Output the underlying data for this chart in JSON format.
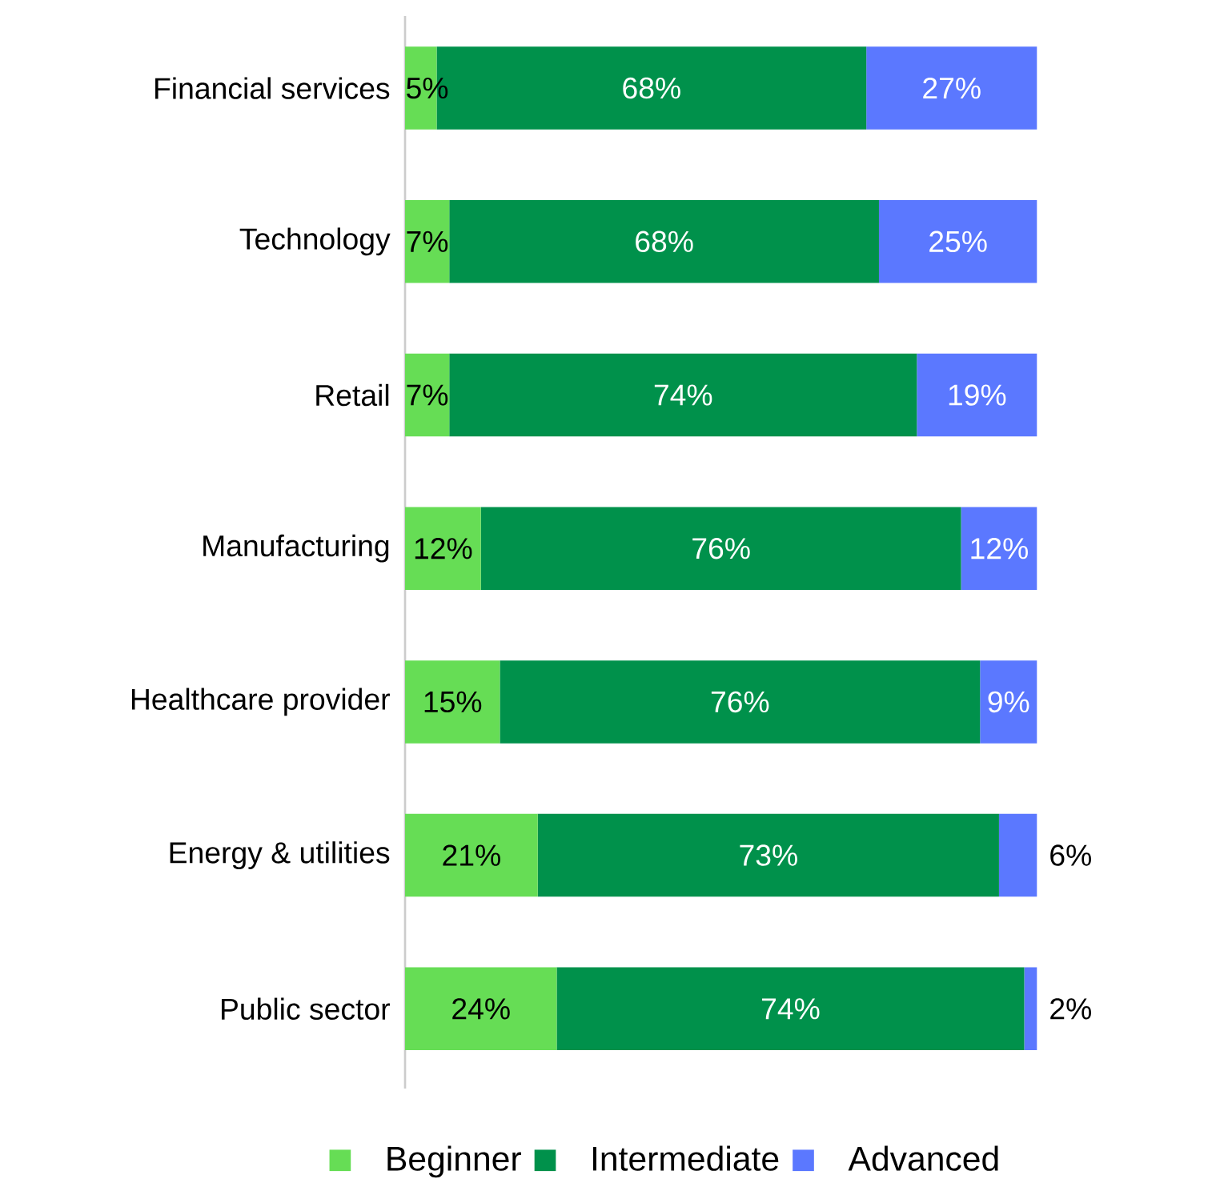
{
  "chart_data": {
    "type": "bar",
    "orientation": "horizontal",
    "stacked": true,
    "legend": "bottom",
    "tick_labels": "y",
    "categories": [
      "Financial services",
      "Technology",
      "Retail",
      "Manufacturing",
      "Healthcare provider",
      "Energy & utilities",
      "Public sector"
    ],
    "series": [
      {
        "name": "Beginner",
        "color": "#66dd55",
        "values": [
          5,
          7,
          7,
          12,
          15,
          21,
          24
        ],
        "value_labels": [
          "5%",
          "7%",
          "7%",
          "12%",
          "15%",
          "21%",
          "24%"
        ]
      },
      {
        "name": "Intermediate",
        "color": "#00914b",
        "values": [
          68,
          68,
          74,
          76,
          76,
          73,
          74
        ],
        "value_labels": [
          "68%",
          "68%",
          "74%",
          "76%",
          "76%",
          "73%",
          "74%"
        ]
      },
      {
        "name": "Advanced",
        "color": "#5b78ff",
        "values": [
          27,
          25,
          19,
          12,
          9,
          6,
          2
        ],
        "value_labels": [
          "27%",
          "25%",
          "19%",
          "12%",
          "9%",
          "6%",
          "2%"
        ]
      }
    ]
  }
}
